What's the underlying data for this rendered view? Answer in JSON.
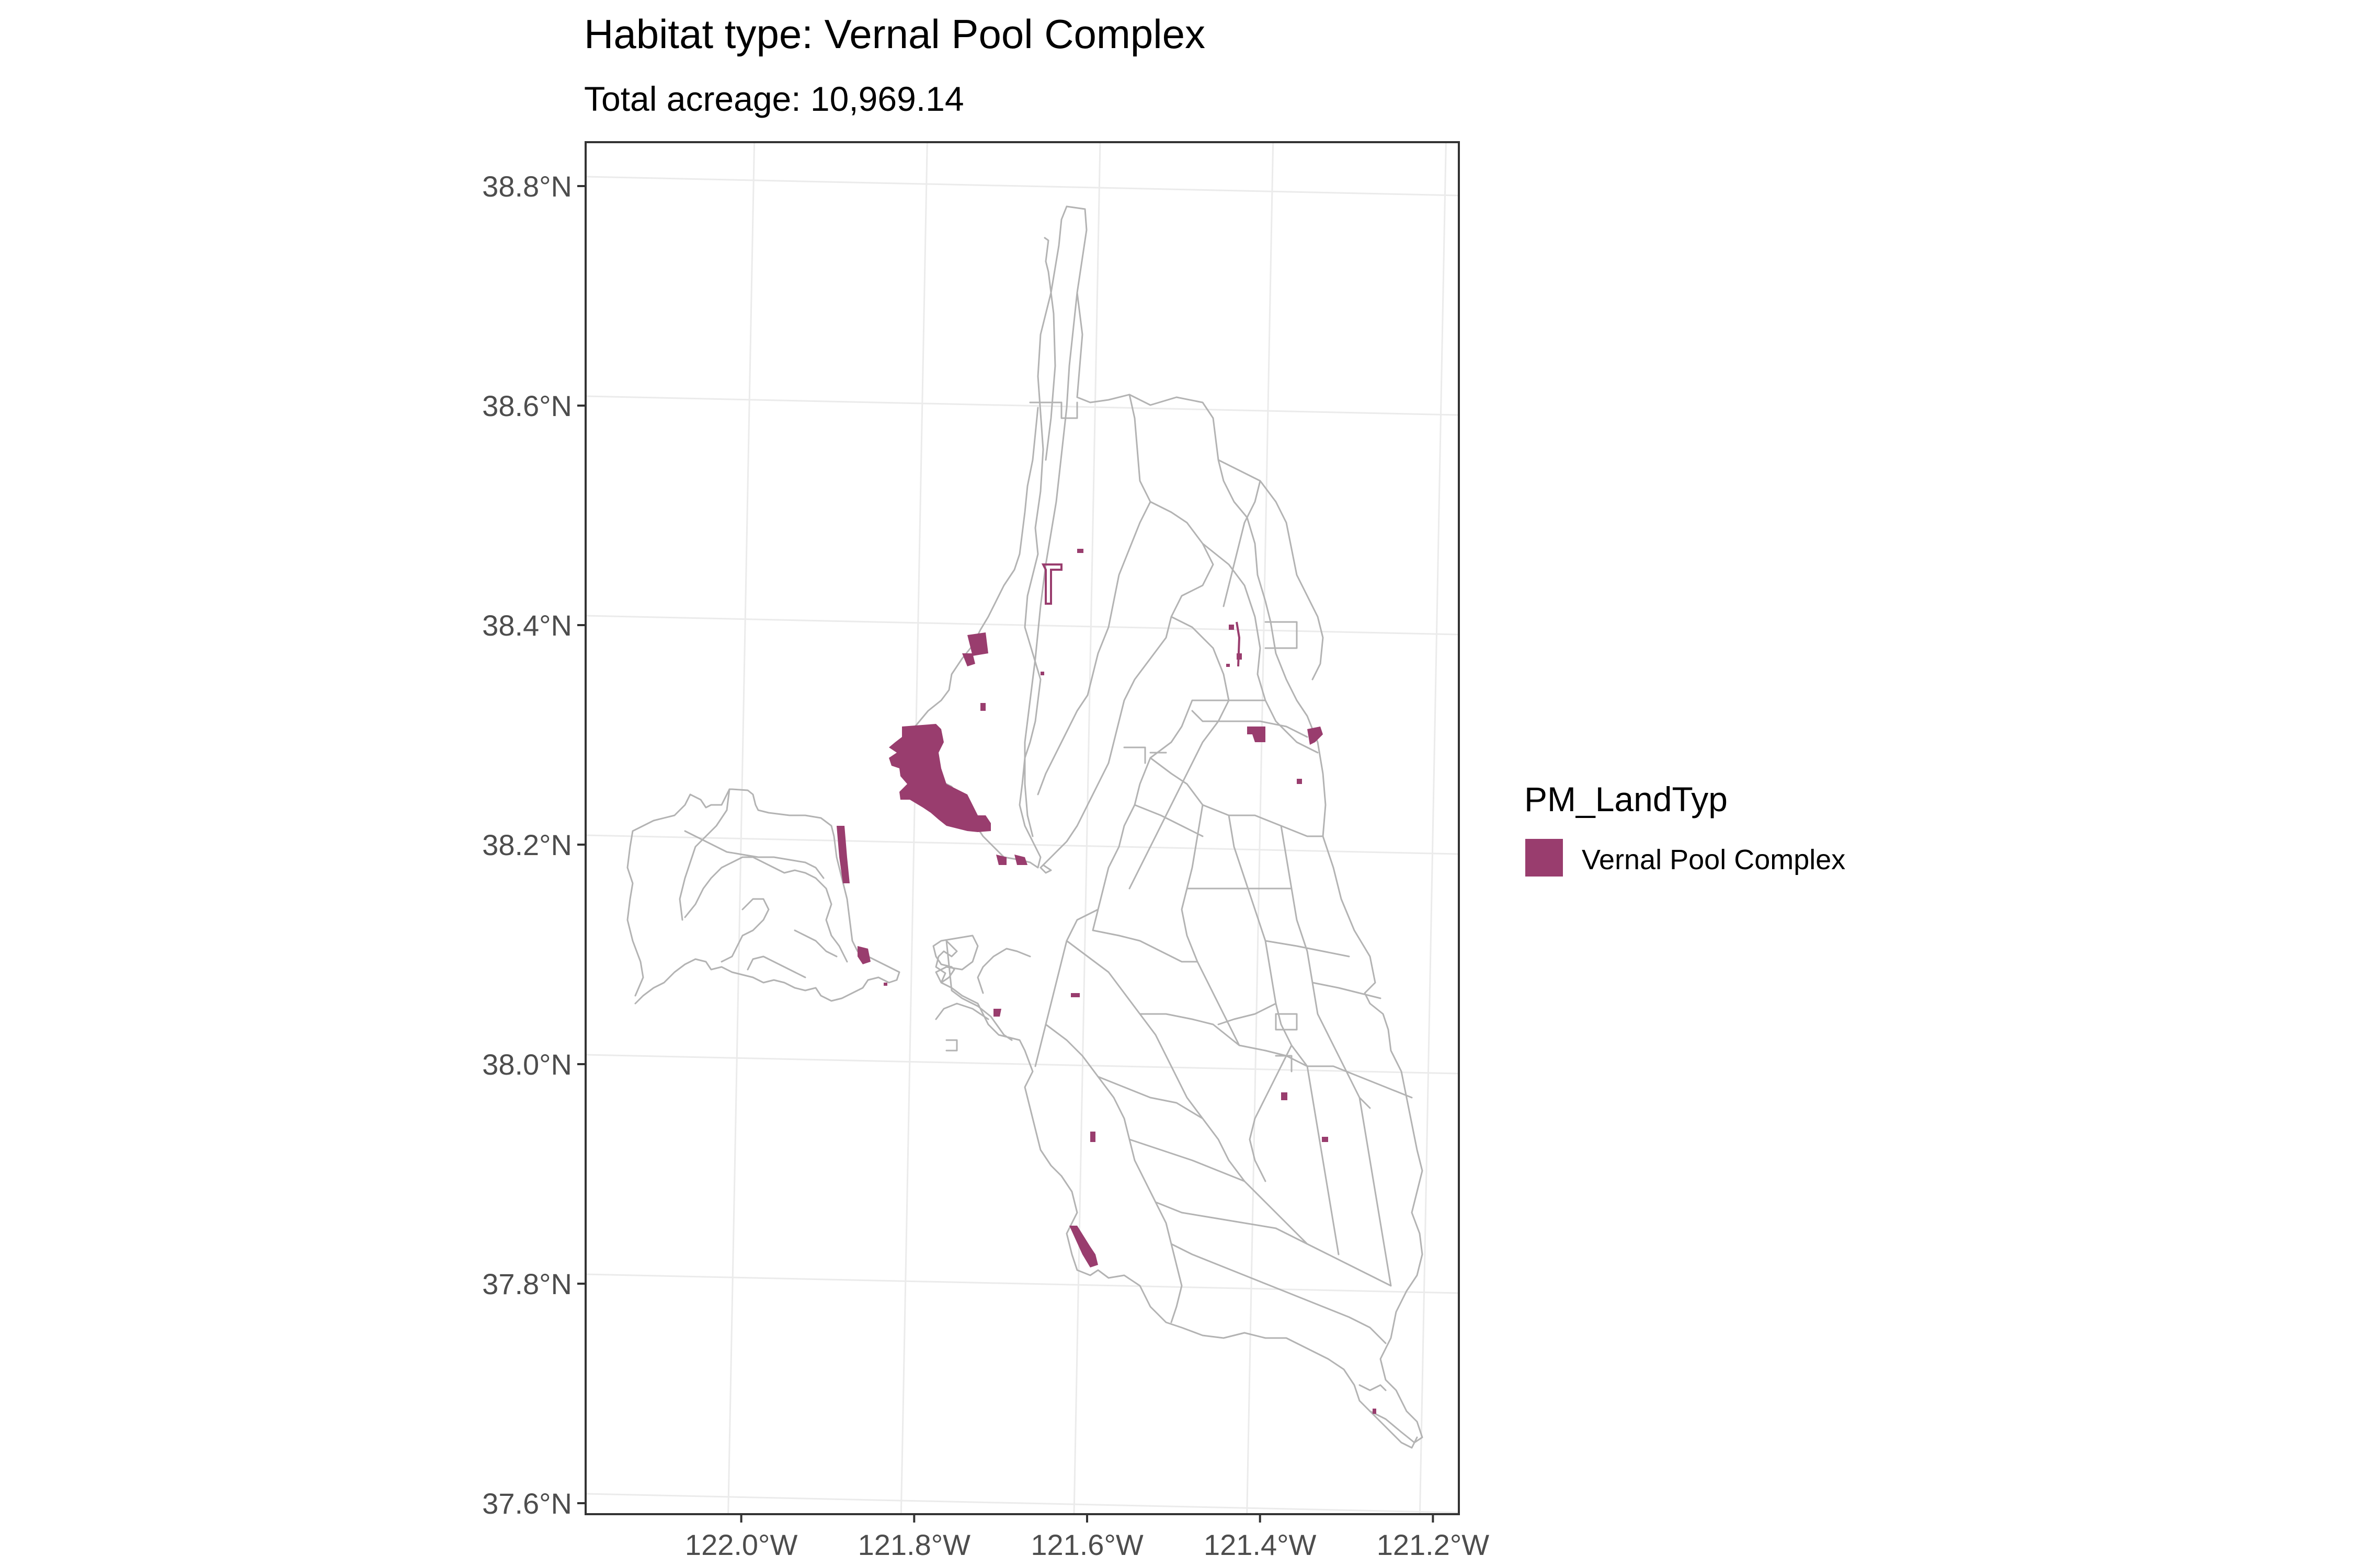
{
  "title": "Habitat type: Vernal Pool Complex",
  "subtitle": "Total acreage: 10,969.14",
  "colors": {
    "habitat_fill": "#993D6E",
    "boundary_stroke": "#B3B3B3",
    "grid": "#EBEBEB",
    "panel_border": "#333333",
    "axis_text": "#4D4D4D"
  },
  "legend": {
    "title": "PM_LandTyp",
    "items": [
      {
        "label": "Vernal Pool Complex",
        "color": "#993D6E"
      }
    ]
  },
  "chart_data": {
    "type": "map",
    "title": "Habitat type: Vernal Pool Complex",
    "subtitle": "Total acreage: 10,969.14",
    "x_ticks": [
      {
        "value": -122.0,
        "label": "122.0°W"
      },
      {
        "value": -121.8,
        "label": "121.8°W"
      },
      {
        "value": -121.6,
        "label": "121.6°W"
      },
      {
        "value": -121.4,
        "label": "121.4°W"
      },
      {
        "value": -121.2,
        "label": "121.2°W"
      }
    ],
    "y_ticks": [
      {
        "value": 37.6,
        "label": "37.6°N"
      },
      {
        "value": 37.8,
        "label": "37.8°N"
      },
      {
        "value": 38.0,
        "label": "38.0°N"
      },
      {
        "value": 38.2,
        "label": "38.2°N"
      },
      {
        "value": 38.4,
        "label": "38.4°N"
      },
      {
        "value": 38.6,
        "label": "38.6°N"
      },
      {
        "value": 38.8,
        "label": "38.8°N"
      }
    ],
    "xlim": [
      -122.18,
      -121.17
    ],
    "ylim": [
      37.59,
      38.84
    ],
    "grid": true,
    "legend_position": "right",
    "legend_title": "PM_LandTyp",
    "category": "Vernal Pool Complex",
    "total_acreage": "10,969.14"
  }
}
